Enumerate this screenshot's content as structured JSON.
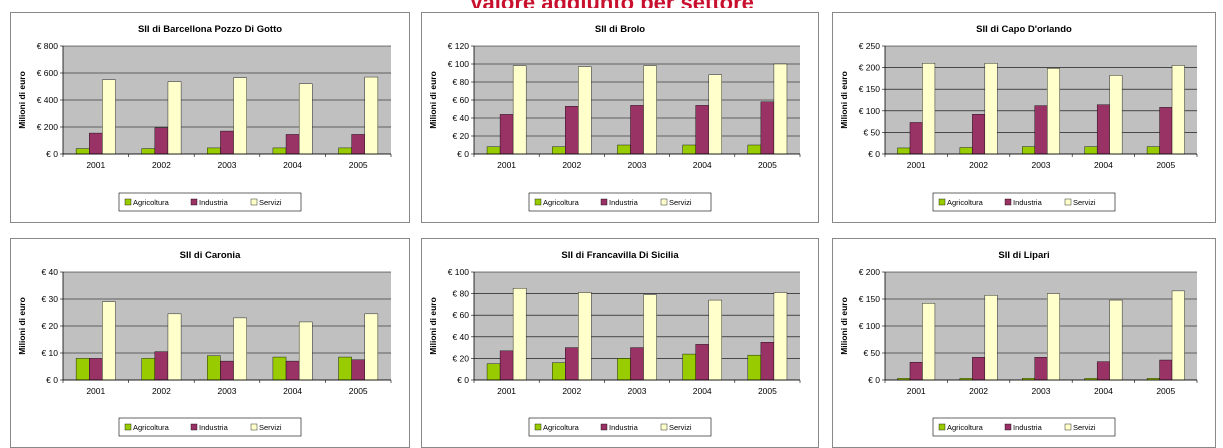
{
  "page": {
    "header_title": "Valore aggiunto per settore"
  },
  "colors": {
    "plot_bg": "#c0c0c0",
    "Agricoltura": "#99cc00",
    "Industria": "#993366",
    "Servizi": "#ffffcc",
    "title_red": "#c8102e"
  },
  "legend": [
    "Agricoltura",
    "Industria",
    "Servizi"
  ],
  "chart_data": [
    {
      "type": "bar",
      "title": "SII di Barcellona Pozzo Di Gotto",
      "ylabel": "Milioni di euro",
      "categories": [
        "2001",
        "2002",
        "2003",
        "2004",
        "2005"
      ],
      "yticks": [
        "€ 0",
        "€ 200",
        "€ 400",
        "€ 600",
        "€ 800"
      ],
      "ylim": [
        0,
        800
      ],
      "series": [
        {
          "name": "Agricoltura",
          "values": [
            40,
            40,
            45,
            45,
            45
          ]
        },
        {
          "name": "Industria",
          "values": [
            155,
            195,
            170,
            145,
            145
          ]
        },
        {
          "name": "Servizi",
          "values": [
            550,
            535,
            565,
            520,
            570
          ]
        }
      ]
    },
    {
      "type": "bar",
      "title": "SII di Brolo",
      "ylabel": "Milioni di euro",
      "categories": [
        "2001",
        "2002",
        "2003",
        "2004",
        "2005"
      ],
      "yticks": [
        "€ 0",
        "€ 20",
        "€ 40",
        "€ 60",
        "€ 80",
        "€ 100",
        "€ 120"
      ],
      "ylim": [
        0,
        120
      ],
      "series": [
        {
          "name": "Agricoltura",
          "values": [
            8,
            8,
            10,
            10,
            10
          ]
        },
        {
          "name": "Industria",
          "values": [
            44,
            53,
            54,
            54,
            58
          ]
        },
        {
          "name": "Servizi",
          "values": [
            98,
            97,
            98,
            88,
            100
          ]
        }
      ]
    },
    {
      "type": "bar",
      "title": "SII di Capo D'orlando",
      "ylabel": "Milioni di euro",
      "categories": [
        "2001",
        "2002",
        "2003",
        "2004",
        "2005"
      ],
      "yticks": [
        "€ 0",
        "€ 50",
        "€ 100",
        "€ 150",
        "€ 200",
        "€ 250"
      ],
      "ylim": [
        0,
        250
      ],
      "series": [
        {
          "name": "Agricoltura",
          "values": [
            14,
            15,
            17,
            17,
            17
          ]
        },
        {
          "name": "Industria",
          "values": [
            73,
            92,
            112,
            114,
            108
          ]
        },
        {
          "name": "Servizi",
          "values": [
            210,
            210,
            198,
            182,
            205
          ]
        }
      ]
    },
    {
      "type": "bar",
      "title": "SII di Caronia",
      "ylabel": "Milioni di euro",
      "categories": [
        "2001",
        "2002",
        "2003",
        "2004",
        "2005"
      ],
      "yticks": [
        "€ 0",
        "€ 10",
        "€ 20",
        "€ 30",
        "€ 40"
      ],
      "ylim": [
        0,
        40
      ],
      "series": [
        {
          "name": "Agricoltura",
          "values": [
            8,
            8,
            9,
            8.5,
            8.5
          ]
        },
        {
          "name": "Industria",
          "values": [
            8,
            10.5,
            7,
            7,
            7.5
          ]
        },
        {
          "name": "Servizi",
          "values": [
            29,
            24.5,
            23,
            21.5,
            24.5
          ]
        }
      ]
    },
    {
      "type": "bar",
      "title": "SII di Francavilla Di Sicilia",
      "ylabel": "Milioni di euro",
      "categories": [
        "2001",
        "2002",
        "2003",
        "2004",
        "2005"
      ],
      "yticks": [
        "€ 0",
        "€ 20",
        "€ 40",
        "€ 60",
        "€ 80",
        "€ 100"
      ],
      "ylim": [
        0,
        100
      ],
      "series": [
        {
          "name": "Agricoltura",
          "values": [
            15,
            16,
            20,
            24,
            23
          ]
        },
        {
          "name": "Industria",
          "values": [
            27,
            30,
            30,
            33,
            35
          ]
        },
        {
          "name": "Servizi",
          "values": [
            85,
            81,
            79,
            74,
            81
          ]
        }
      ]
    },
    {
      "type": "bar",
      "title": "SII di Lipari",
      "ylabel": "Milioni di euro",
      "categories": [
        "2001",
        "2002",
        "2003",
        "2004",
        "2005"
      ],
      "yticks": [
        "€ 0",
        "€ 50",
        "€ 100",
        "€ 150",
        "€ 200"
      ],
      "ylim": [
        0,
        200
      ],
      "series": [
        {
          "name": "Agricoltura",
          "values": [
            3,
            3,
            3,
            3,
            3
          ]
        },
        {
          "name": "Industria",
          "values": [
            33,
            42,
            42,
            34,
            37
          ]
        },
        {
          "name": "Servizi",
          "values": [
            142,
            157,
            160,
            148,
            165
          ]
        }
      ]
    }
  ]
}
